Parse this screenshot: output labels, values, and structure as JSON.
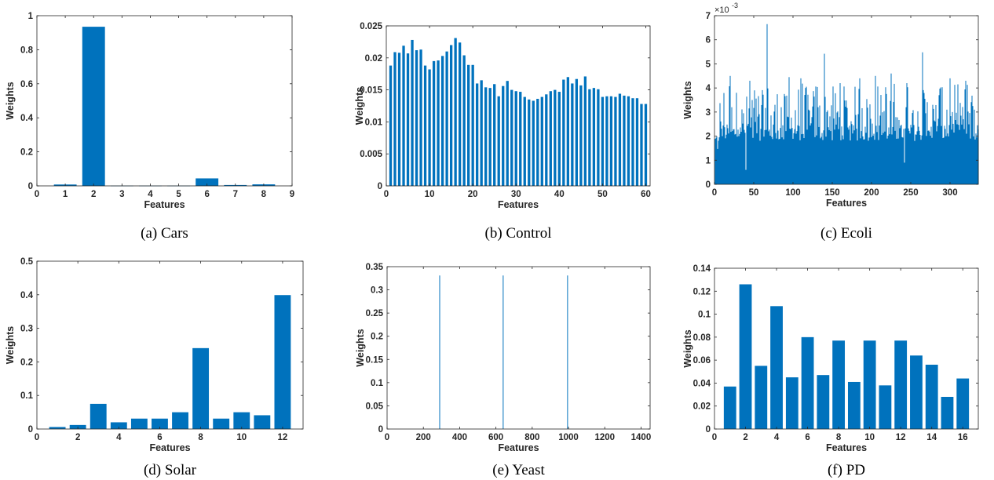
{
  "colors": {
    "bar": "#0072BD",
    "axis": "#262626",
    "background": "#ffffff"
  },
  "chart_data": [
    {
      "type": "bar",
      "caption": "(a)  Cars",
      "xlabel": "Features",
      "ylabel": "Weights",
      "xlim": [
        0,
        9
      ],
      "ylim": [
        0,
        1
      ],
      "xticks": [
        0,
        1,
        2,
        3,
        4,
        5,
        6,
        7,
        8,
        9
      ],
      "yticks": [
        0,
        0.2,
        0.4,
        0.6,
        0.8,
        1
      ],
      "ytick_labels": [
        "0",
        "0.2",
        "0.4",
        "0.6",
        "0.8",
        "1"
      ],
      "x": [
        1,
        2,
        3,
        4,
        5,
        6,
        7,
        8
      ],
      "values": [
        0.008,
        0.935,
        0.001,
        0.001,
        0.001,
        0.044,
        0.005,
        0.009
      ],
      "bar_width": 0.8
    },
    {
      "type": "bar",
      "caption": "(b)  Control",
      "xlabel": "Features",
      "ylabel": "Weights",
      "xlim": [
        0,
        61
      ],
      "ylim": [
        0,
        0.025
      ],
      "xticks": [
        0,
        10,
        20,
        30,
        40,
        50,
        60
      ],
      "yticks": [
        0,
        0.005,
        0.01,
        0.015,
        0.02,
        0.025
      ],
      "ytick_labels": [
        "0",
        "0.005",
        "0.01",
        "0.015",
        "0.02",
        "0.025"
      ],
      "x": [
        1,
        2,
        3,
        4,
        5,
        6,
        7,
        8,
        9,
        10,
        11,
        12,
        13,
        14,
        15,
        16,
        17,
        18,
        19,
        20,
        21,
        22,
        23,
        24,
        25,
        26,
        27,
        28,
        29,
        30,
        31,
        32,
        33,
        34,
        35,
        36,
        37,
        38,
        39,
        40,
        41,
        42,
        43,
        44,
        45,
        46,
        47,
        48,
        49,
        50,
        51,
        52,
        53,
        54,
        55,
        56,
        57,
        58,
        59,
        60
      ],
      "values": [
        0.0188,
        0.0209,
        0.0208,
        0.0219,
        0.0207,
        0.0228,
        0.0212,
        0.0213,
        0.0188,
        0.0182,
        0.0195,
        0.0196,
        0.0203,
        0.021,
        0.022,
        0.0231,
        0.0224,
        0.0204,
        0.0189,
        0.0189,
        0.016,
        0.0165,
        0.0154,
        0.0153,
        0.0159,
        0.014,
        0.0156,
        0.0164,
        0.015,
        0.0148,
        0.0147,
        0.0139,
        0.0135,
        0.0133,
        0.0136,
        0.0139,
        0.0143,
        0.0148,
        0.015,
        0.0147,
        0.0166,
        0.017,
        0.016,
        0.0167,
        0.0157,
        0.0171,
        0.0151,
        0.0153,
        0.0151,
        0.0139,
        0.014,
        0.014,
        0.0139,
        0.0144,
        0.0141,
        0.014,
        0.0137,
        0.0137,
        0.0128,
        0.0128
      ],
      "bar_width": 0.6
    },
    {
      "type": "bar",
      "caption": "(c)  Ecoli",
      "xlabel": "Features",
      "ylabel": "Weights",
      "exponent_label": "×10",
      "exponent_power": "-3",
      "xlim": [
        0,
        336
      ],
      "ylim": [
        0,
        7
      ],
      "xticks": [
        0,
        50,
        100,
        150,
        200,
        250,
        300
      ],
      "yticks": [
        0,
        1,
        2,
        3,
        4,
        5,
        6,
        7
      ],
      "ytick_labels": [
        "0",
        "1",
        "2",
        "3",
        "4",
        "5",
        "6",
        "7"
      ],
      "n_bars": 336,
      "values": [],
      "bar_width": 0.8
    },
    {
      "type": "bar",
      "caption": "(d)  Solar",
      "xlabel": "Features",
      "ylabel": "Weights",
      "xlim": [
        0,
        13
      ],
      "ylim": [
        0,
        0.5
      ],
      "xticks": [
        0,
        2,
        4,
        6,
        8,
        10,
        12
      ],
      "yticks": [
        0,
        0.1,
        0.2,
        0.3,
        0.4,
        0.5
      ],
      "ytick_labels": [
        "0",
        "0.1",
        "0.2",
        "0.3",
        "0.4",
        "0.5"
      ],
      "x": [
        1,
        2,
        3,
        4,
        5,
        6,
        7,
        8,
        9,
        10,
        11,
        12
      ],
      "values": [
        0.006,
        0.012,
        0.075,
        0.02,
        0.031,
        0.031,
        0.05,
        0.241,
        0.031,
        0.05,
        0.041,
        0.399
      ],
      "bar_width": 0.8
    },
    {
      "type": "bar",
      "caption": "(e)  Yeast",
      "xlabel": "Features",
      "ylabel": "Weights",
      "xlim": [
        0,
        1450
      ],
      "ylim": [
        0,
        0.35
      ],
      "xticks": [
        0,
        200,
        400,
        600,
        800,
        1000,
        1200,
        1400
      ],
      "yticks": [
        0,
        0.05,
        0.1,
        0.15,
        0.2,
        0.25,
        0.3,
        0.35
      ],
      "ytick_labels": [
        "0",
        "0.05",
        "0.1",
        "0.15",
        "0.2",
        "0.25",
        "0.3",
        "0.35"
      ],
      "x": [
        290,
        640,
        995
      ],
      "values": [
        0.331,
        0.331,
        0.331
      ],
      "bar_width": 3
    },
    {
      "type": "bar",
      "caption": "(f)  PD",
      "xlabel": "Features",
      "ylabel": "Weights",
      "xlim": [
        0,
        17
      ],
      "ylim": [
        0,
        0.14
      ],
      "xticks": [
        0,
        2,
        4,
        6,
        8,
        10,
        12,
        14,
        16
      ],
      "yticks": [
        0,
        0.02,
        0.04,
        0.06,
        0.08,
        0.1,
        0.12,
        0.14
      ],
      "ytick_labels": [
        "0",
        "0.02",
        "0.04",
        "0.06",
        "0.08",
        "0.1",
        "0.12",
        "0.14"
      ],
      "x": [
        1,
        2,
        3,
        4,
        5,
        6,
        7,
        8,
        9,
        10,
        11,
        12,
        13,
        14,
        15,
        16
      ],
      "values": [
        0.037,
        0.126,
        0.055,
        0.107,
        0.045,
        0.08,
        0.047,
        0.077,
        0.041,
        0.077,
        0.038,
        0.077,
        0.064,
        0.056,
        0.028,
        0.044
      ],
      "bar_width": 0.8
    }
  ]
}
